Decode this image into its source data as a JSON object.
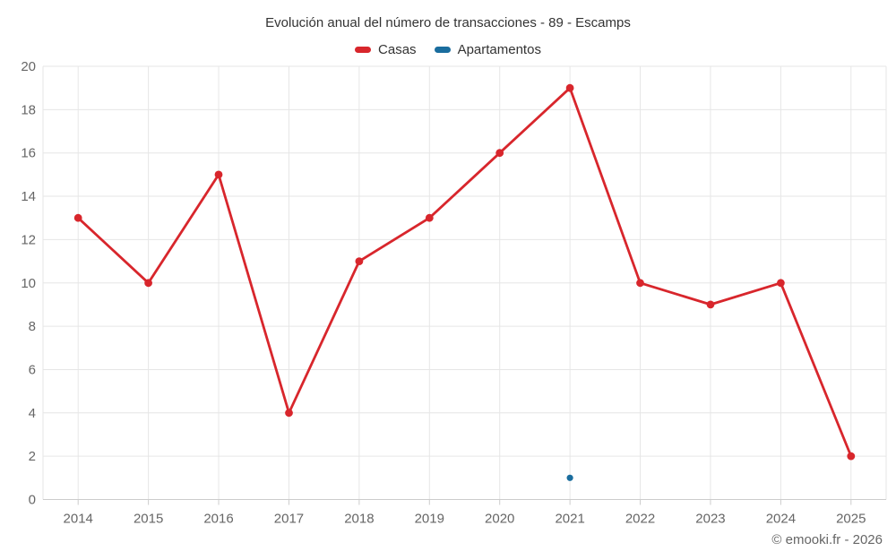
{
  "chart_data": {
    "type": "line",
    "title": "Evolución anual del número de transacciones - 89 - Escamps",
    "categories": [
      "2014",
      "2015",
      "2016",
      "2017",
      "2018",
      "2019",
      "2020",
      "2021",
      "2022",
      "2023",
      "2024",
      "2025"
    ],
    "series": [
      {
        "name": "Casas",
        "color": "#d8262c",
        "values": [
          13,
          10,
          15,
          4,
          11,
          13,
          16,
          19,
          10,
          9,
          10,
          2
        ]
      },
      {
        "name": "Apartamentos",
        "color": "#1a6d9e",
        "values": [
          null,
          null,
          null,
          null,
          null,
          null,
          null,
          1,
          null,
          null,
          null,
          null
        ]
      }
    ],
    "xlabel": "",
    "ylabel": "",
    "ylim": [
      0,
      20
    ],
    "ytick_step": 2,
    "grid": true,
    "legend_position": "top",
    "colors": {
      "grid_line": "#e6e6e6",
      "axis_line": "#cccccc",
      "axis_label": "#666666",
      "title_text": "#333333",
      "legend_text": "#333333"
    },
    "credits": "© emooki.fr - 2026"
  }
}
